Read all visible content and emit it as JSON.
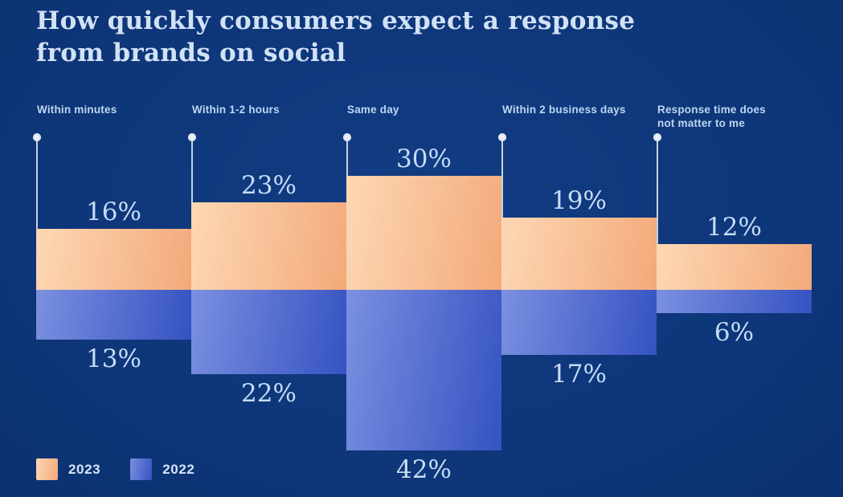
{
  "title": "How quickly consumers expect a response\nfrom brands on social",
  "legend": {
    "items": [
      {
        "label": "2023",
        "series": "2023"
      },
      {
        "label": "2022",
        "series": "2022"
      }
    ],
    "position": "bottom-left"
  },
  "chart_data": {
    "type": "bar",
    "subtype": "diverging-vertical-columns",
    "title": "How quickly consumers expect a response from brands on social",
    "categories": [
      "Within minutes",
      "Within 1-2 hours",
      "Same day",
      "Within 2 business days",
      "Response time does not matter to me"
    ],
    "series": [
      {
        "name": "2023",
        "direction": "up",
        "values": [
          16,
          23,
          30,
          19,
          12
        ]
      },
      {
        "name": "2022",
        "direction": "down",
        "values": [
          13,
          22,
          42,
          17,
          6
        ]
      }
    ],
    "unit": "%",
    "data_labels": true,
    "axes_visible": false,
    "gridlines": false,
    "legend_position": "bottom-left"
  },
  "colors": {
    "background": "#0e3679",
    "series_2023_from": "#fdd8b4",
    "series_2023_to": "#f3a97a",
    "series_2022_from": "#7b90e0",
    "series_2022_to": "#3552c2",
    "title_text": "#d2e2f6",
    "label_text": "#bcd6f2",
    "value_text": "#c6ddf6",
    "pin": "#d9e3f0"
  }
}
